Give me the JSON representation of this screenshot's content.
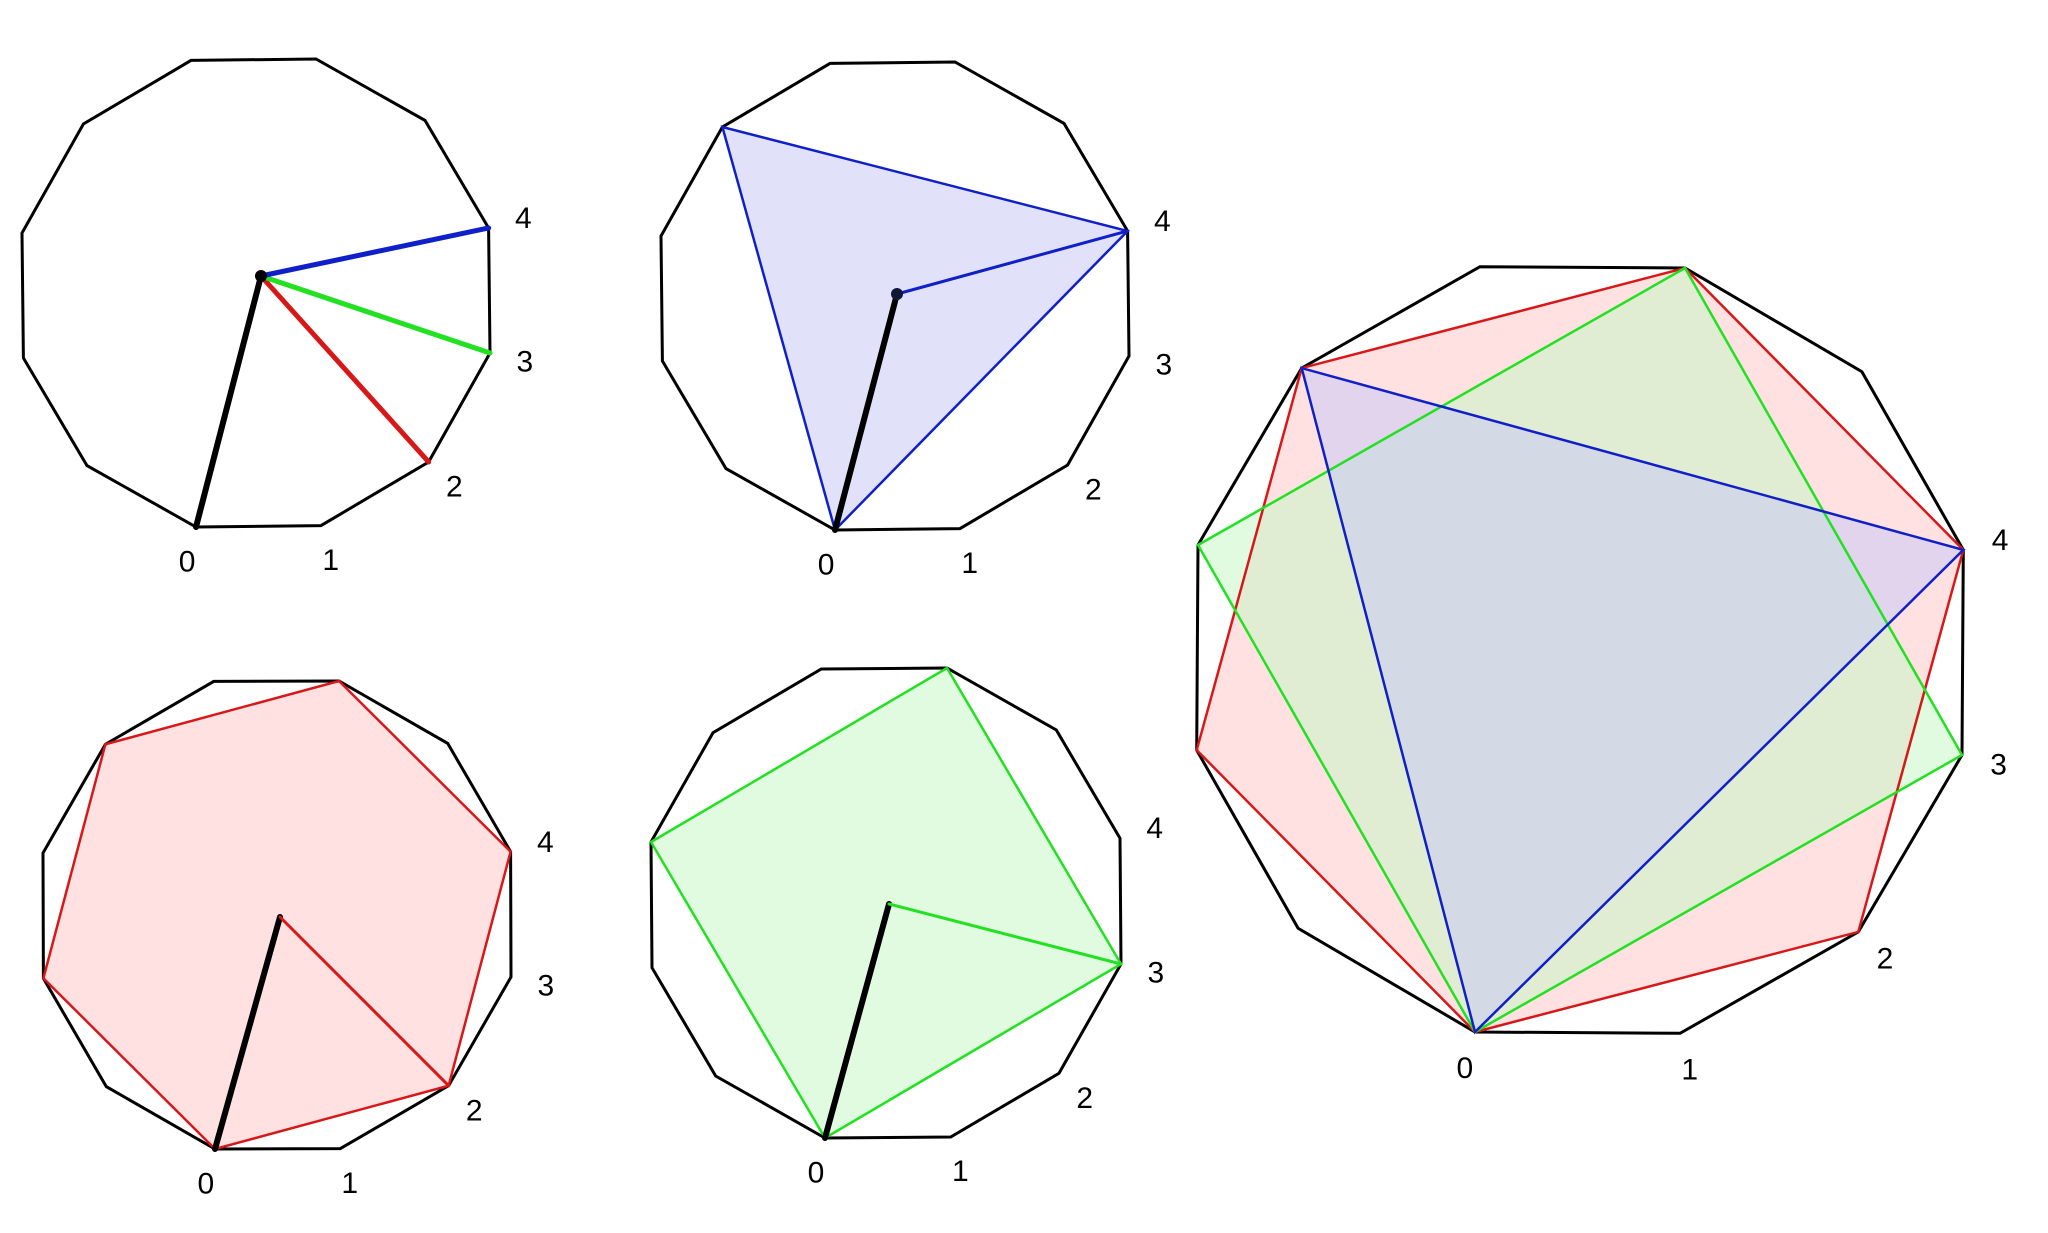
{
  "colors": {
    "outline": "#000000",
    "spoke": "#000000",
    "blue": "#1020c8",
    "red": "#d81818",
    "green": "#22e022",
    "blue_fill": "#c8caf5",
    "red_fill": "#ffc8c8",
    "green_fill": "#c8f8c8",
    "background": "#ffffff"
  },
  "figure": {
    "polygon_sides": 12,
    "panels": [
      {
        "id": "steps-overview",
        "vertex_labels": [
          "0",
          "1",
          "2",
          "3",
          "4"
        ],
        "chords": [
          {
            "step": 2,
            "color": "red"
          },
          {
            "step": 3,
            "color": "green"
          },
          {
            "step": 4,
            "color": "blue"
          }
        ],
        "shapes": []
      },
      {
        "id": "triangle-step-4",
        "vertex_labels": [
          "0",
          "1",
          "2",
          "3",
          "4"
        ],
        "chords": [
          {
            "step": 4,
            "color": "blue"
          }
        ],
        "shapes": [
          {
            "step": 4,
            "color": "blue",
            "fill": "blue_fill"
          }
        ]
      },
      {
        "id": "combined",
        "vertex_labels": [
          "0",
          "1",
          "2",
          "3",
          "4"
        ],
        "chords": [],
        "shapes": [
          {
            "step": 2,
            "color": "red",
            "fill": "red_fill"
          },
          {
            "step": 3,
            "color": "green",
            "fill": "green_fill"
          },
          {
            "step": 4,
            "color": "blue",
            "fill": "blue_fill"
          }
        ]
      },
      {
        "id": "hexagon-step-2",
        "vertex_labels": [
          "0",
          "1",
          "2",
          "3",
          "4"
        ],
        "chords": [
          {
            "step": 2,
            "color": "red"
          }
        ],
        "shapes": [
          {
            "step": 2,
            "color": "red",
            "fill": "red_fill"
          }
        ]
      },
      {
        "id": "square-step-3",
        "vertex_labels": [
          "0",
          "1",
          "2",
          "3",
          "4"
        ],
        "chords": [
          {
            "step": 3,
            "color": "green"
          }
        ],
        "shapes": [
          {
            "step": 3,
            "color": "green",
            "fill": "green_fill"
          }
        ]
      }
    ]
  }
}
